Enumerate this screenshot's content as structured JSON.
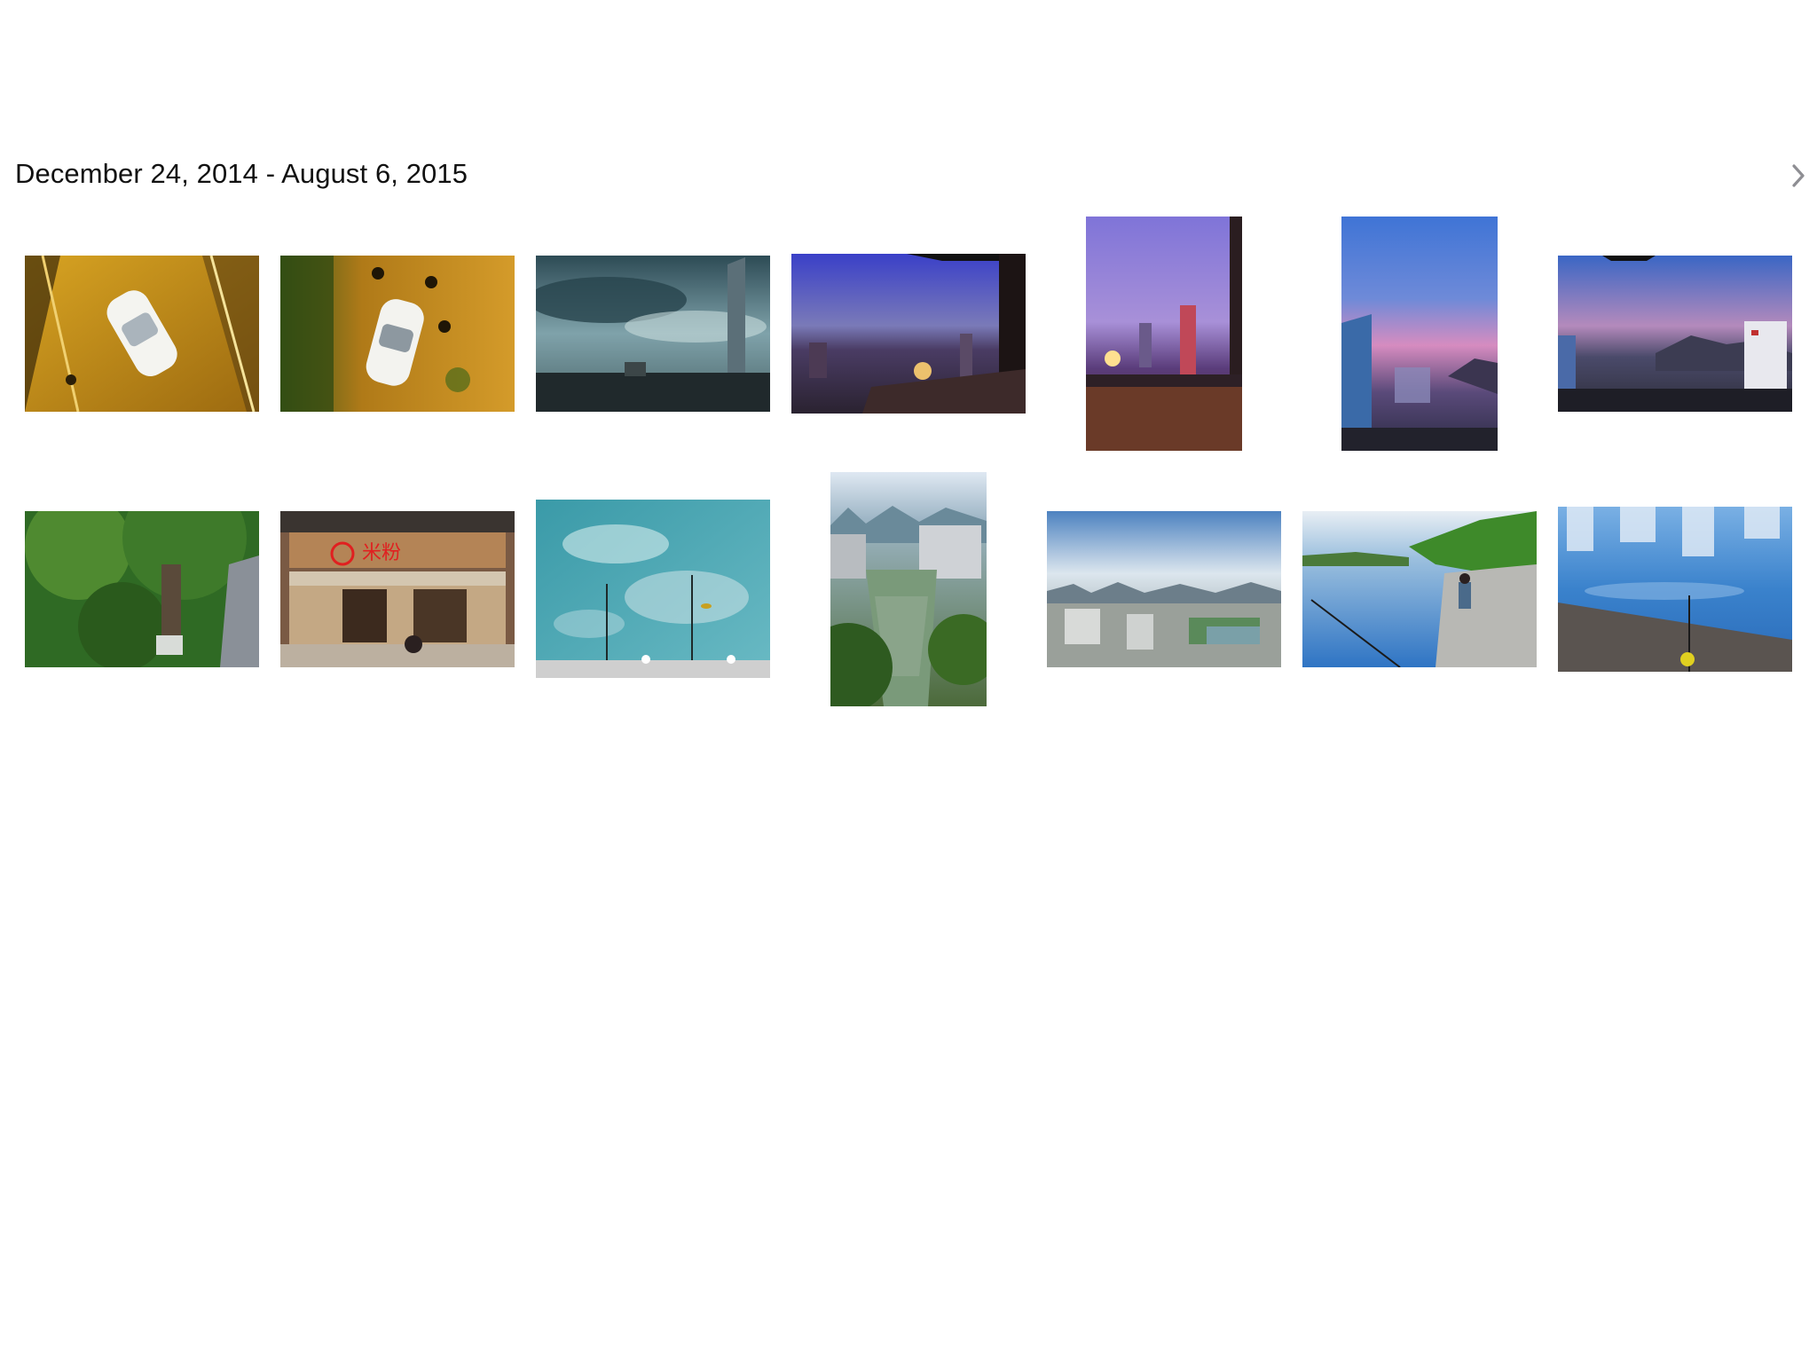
{
  "collection": {
    "title": "December 24, 2014 - August 6, 2015",
    "next_icon": "chevron-right-icon"
  },
  "photos": [
    {
      "subject": "white car on road at night, overhead view"
    },
    {
      "subject": "white car parked, people standing, overhead at night"
    },
    {
      "subject": "cloudy sky over highway with tower"
    },
    {
      "subject": "city skyline at dusk from balcony"
    },
    {
      "subject": "city lights at dusk, portrait"
    },
    {
      "subject": "pink sunset city skyline, portrait"
    },
    {
      "subject": "city skyline at sunset with mountains"
    },
    {
      "subject": "large tree in green park"
    },
    {
      "subject": "rice noodle shop storefront"
    },
    {
      "subject": "water reflection with fishing rods"
    },
    {
      "subject": "river through city with karst hills, portrait"
    },
    {
      "subject": "city with karst mountains and clouds"
    },
    {
      "subject": "man fishing on river steps"
    },
    {
      "subject": "blue water reflection with fishing rod"
    }
  ]
}
